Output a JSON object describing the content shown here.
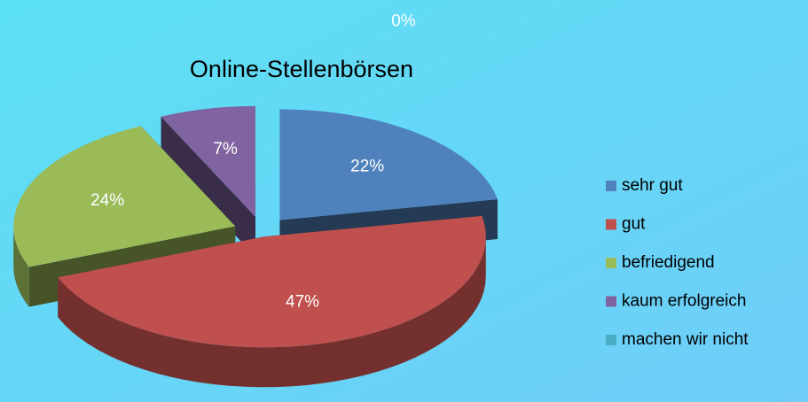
{
  "chart_data": {
    "type": "pie3d",
    "title": "Online-Stellenbörsen",
    "categories": [
      "sehr gut",
      "gut",
      "befriedigend",
      "kaum erfolgreich",
      "machen wir nicht"
    ],
    "values": [
      22,
      47,
      24,
      7,
      0
    ],
    "value_labels": [
      "22%",
      "47%",
      "24%",
      "7%",
      "0%"
    ],
    "colors": [
      "#4f81bd",
      "#c0504d",
      "#9bbb59",
      "#8064a2",
      "#4bacc6"
    ],
    "legend": "right"
  }
}
